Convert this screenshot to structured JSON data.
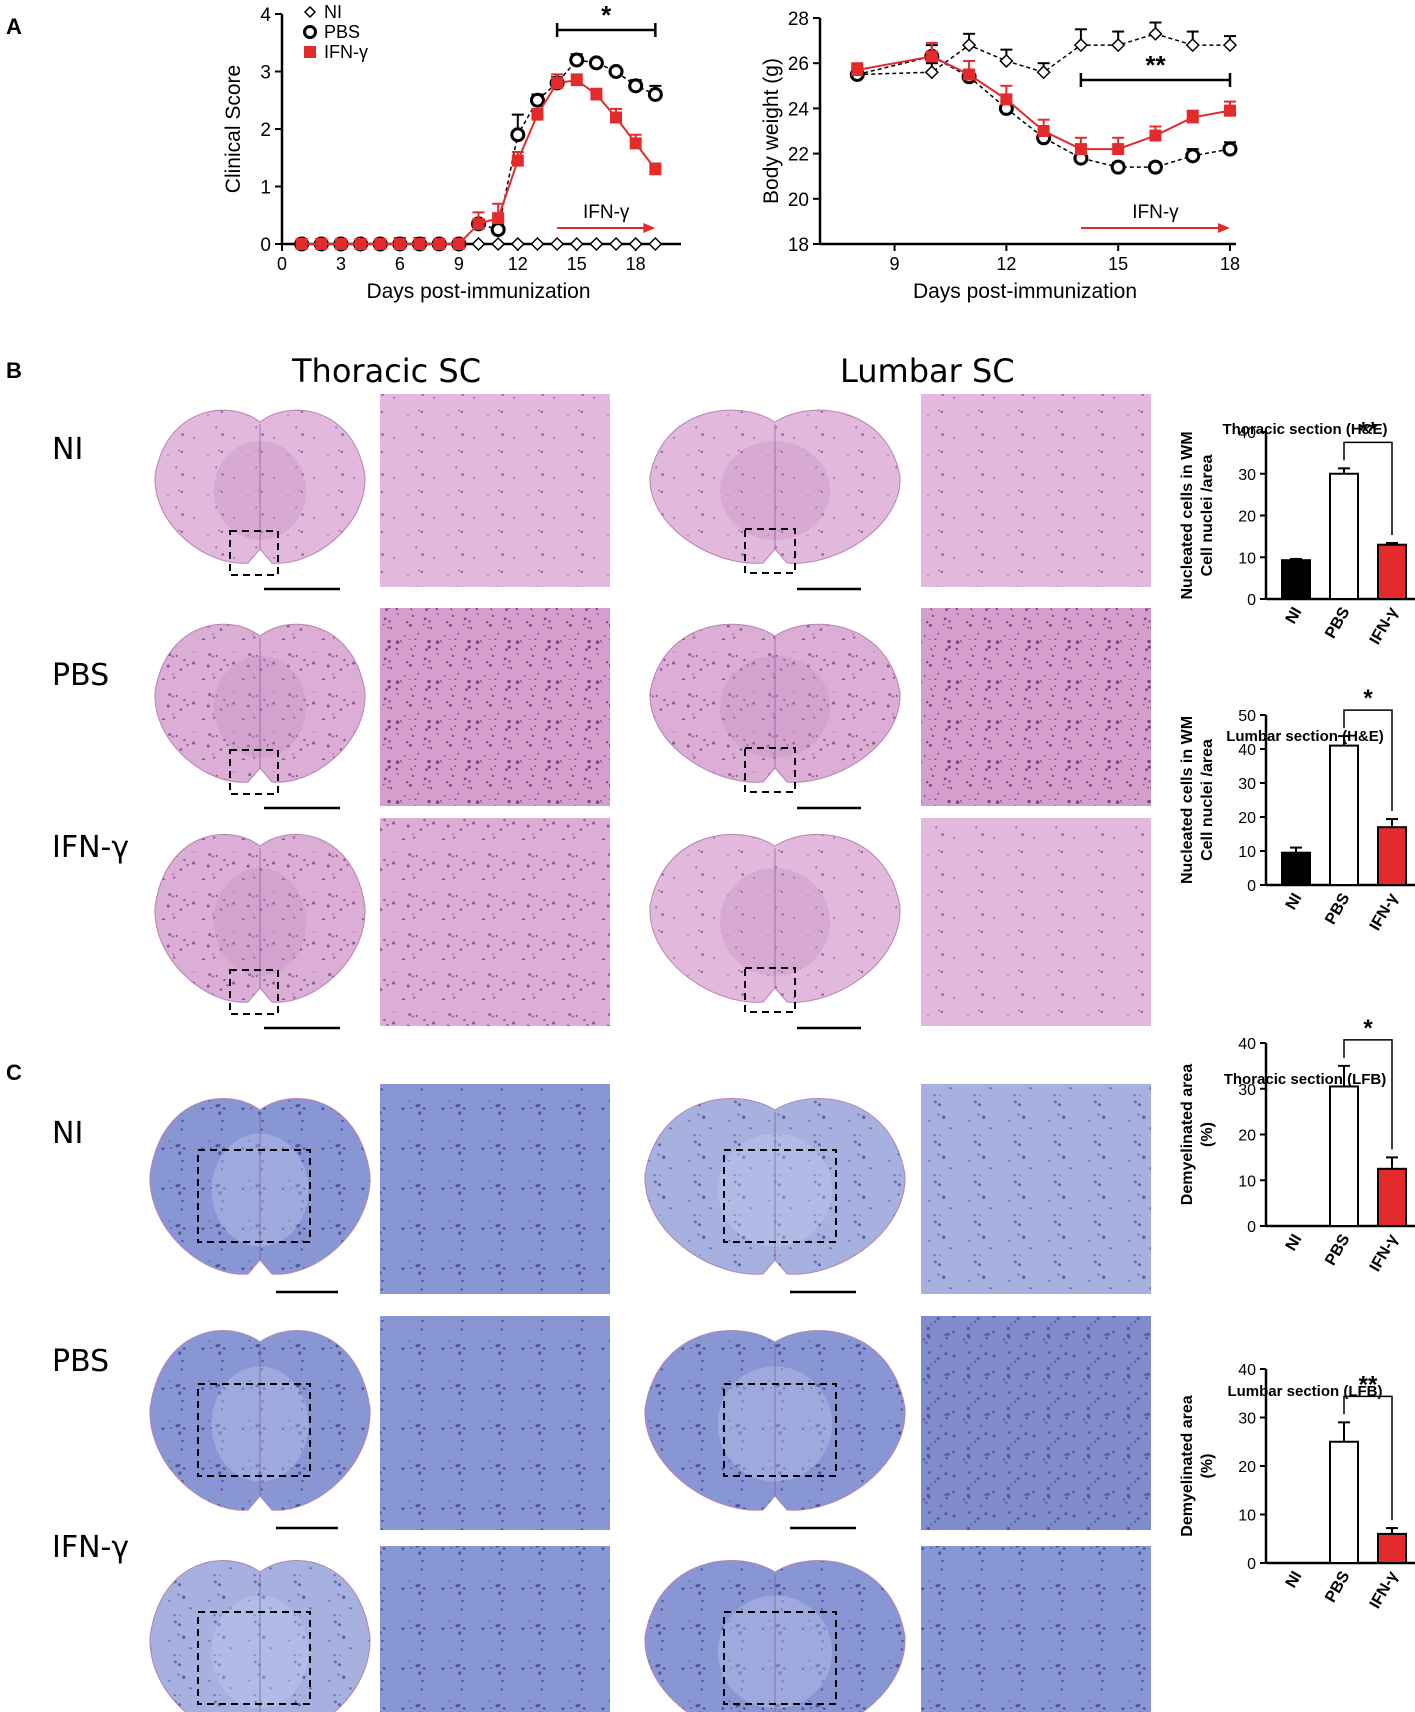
{
  "panel_letters": {
    "a": "A",
    "b": "B",
    "c": "C"
  },
  "columns": {
    "thoracic": "Thoracic SC",
    "lumbar": "Lumbar SC"
  },
  "rows": {
    "ni": "NI",
    "pbs": "PBS",
    "ifn": "IFN-γ"
  },
  "colors": {
    "red": "#e32b2b",
    "black": "#000000",
    "he_pink": "#d9a6d2",
    "lfb_blue": "#8592d2"
  },
  "chart_data": [
    {
      "type": "line",
      "xlabel": "Days post-immunization",
      "ylabel": "Clinical Score",
      "xlim": [
        0,
        20
      ],
      "ylim": [
        0,
        4
      ],
      "xticks": [
        0,
        3,
        6,
        9,
        12,
        15,
        18
      ],
      "yticks": [
        0,
        1,
        2,
        3,
        4
      ],
      "legend": [
        "NI",
        "PBS",
        "IFN-γ"
      ],
      "legend_position": "top-left",
      "significance": "*",
      "sig_range": [
        14,
        19
      ],
      "treatment_label": "IFN-γ",
      "treatment_range": [
        14,
        19
      ],
      "series": [
        {
          "name": "NI",
          "marker": "diamond",
          "color": "#000000",
          "dashed": true,
          "x": [
            1,
            2,
            3,
            4,
            5,
            6,
            7,
            8,
            9,
            10,
            11,
            12,
            13,
            14,
            15,
            16,
            17,
            18,
            19
          ],
          "y": [
            0,
            0,
            0,
            0,
            0,
            0,
            0,
            0,
            0,
            0,
            0,
            0,
            0,
            0,
            0,
            0,
            0,
            0,
            0
          ],
          "err": [
            0,
            0,
            0,
            0,
            0,
            0,
            0,
            0,
            0,
            0,
            0,
            0,
            0,
            0,
            0,
            0,
            0,
            0,
            0
          ]
        },
        {
          "name": "PBS",
          "marker": "circle",
          "color": "#000000",
          "dashed": true,
          "x": [
            1,
            2,
            3,
            4,
            5,
            6,
            7,
            8,
            9,
            10,
            11,
            12,
            13,
            14,
            15,
            16,
            17,
            18,
            19
          ],
          "y": [
            0,
            0,
            0,
            0,
            0,
            0,
            0,
            0,
            0,
            0.35,
            0.25,
            1.9,
            2.5,
            2.8,
            3.2,
            3.15,
            3.0,
            2.75,
            2.6
          ],
          "err": [
            0,
            0,
            0,
            0,
            0,
            0.1,
            0.1,
            0,
            0,
            0.05,
            0.1,
            0.35,
            0.1,
            0.1,
            0.1,
            0.05,
            0.05,
            0.1,
            0.15
          ]
        },
        {
          "name": "IFN-γ",
          "marker": "square",
          "color": "#e32b2b",
          "dashed": false,
          "x": [
            1,
            2,
            3,
            4,
            5,
            6,
            7,
            8,
            9,
            10,
            11,
            12,
            13,
            14,
            15,
            16,
            17,
            18,
            19
          ],
          "y": [
            0,
            0,
            0,
            0,
            0,
            0,
            0,
            0,
            0,
            0.35,
            0.45,
            1.45,
            2.25,
            2.8,
            2.85,
            2.6,
            2.2,
            1.75,
            1.3
          ],
          "err": [
            0,
            0,
            0,
            0,
            0,
            0,
            0,
            0,
            0,
            0.2,
            0.25,
            0.15,
            0.1,
            0.15,
            0.1,
            0.1,
            0.15,
            0.15,
            0.1
          ]
        }
      ]
    },
    {
      "type": "line",
      "xlabel": "Days post-immunization",
      "ylabel": "Body weight (g)",
      "xlim": [
        7,
        18
      ],
      "ylim": [
        18,
        28
      ],
      "xticks": [
        9,
        12,
        15,
        18
      ],
      "yticks": [
        18,
        20,
        22,
        24,
        26,
        28
      ],
      "significance": "**",
      "sig_range": [
        14,
        18
      ],
      "treatment_label": "IFN-γ",
      "treatment_range": [
        14,
        18
      ],
      "series": [
        {
          "name": "NI",
          "marker": "diamond",
          "color": "#000000",
          "dashed": true,
          "x": [
            8,
            10,
            11,
            12,
            13,
            14,
            15,
            16,
            17,
            18
          ],
          "y": [
            25.5,
            25.6,
            26.8,
            26.1,
            25.6,
            26.8,
            26.8,
            27.3,
            26.8,
            26.8
          ],
          "err": [
            0.3,
            0.4,
            0.5,
            0.5,
            0.4,
            0.7,
            0.6,
            0.5,
            0.6,
            0.4
          ]
        },
        {
          "name": "PBS",
          "marker": "circle",
          "color": "#000000",
          "dashed": true,
          "x": [
            8,
            10,
            11,
            12,
            13,
            14,
            15,
            16,
            17,
            18
          ],
          "y": [
            25.5,
            26.3,
            25.4,
            24.0,
            22.7,
            21.8,
            21.4,
            21.4,
            21.9,
            22.2
          ],
          "err": [
            0.2,
            0.5,
            0.3,
            0.3,
            0.2,
            0.2,
            0.2,
            0.2,
            0.3,
            0.3
          ]
        },
        {
          "name": "IFN-γ",
          "marker": "square",
          "color": "#e32b2b",
          "dashed": false,
          "x": [
            8,
            10,
            11,
            12,
            13,
            14,
            15,
            16,
            17,
            18
          ],
          "y": [
            25.7,
            26.3,
            25.5,
            24.4,
            23.0,
            22.2,
            22.2,
            22.8,
            23.6,
            23.9
          ],
          "err": [
            0.3,
            0.6,
            0.6,
            0.6,
            0.5,
            0.5,
            0.5,
            0.4,
            0.3,
            0.4
          ]
        }
      ]
    },
    {
      "type": "bar",
      "title": "Thoracic section (H&E)",
      "ylabel_lines": [
        "Nucleated cells in WM",
        "Cell nuclei /area"
      ],
      "categories": [
        "NI",
        "PBS",
        "IFN-γ"
      ],
      "values": [
        9.3,
        30,
        13
      ],
      "err": [
        0.3,
        1.3,
        0.4
      ],
      "colors": [
        "#000000",
        "#ffffff",
        "#e32b2b"
      ],
      "ylim": [
        0,
        40
      ],
      "yticks": [
        0,
        10,
        20,
        30,
        40
      ],
      "significance": "**",
      "sig_pair": [
        1,
        2
      ]
    },
    {
      "type": "bar",
      "title": "Lumbar section (H&E)",
      "ylabel_lines": [
        "Nucleated cells in WM",
        "Cell nuclei /area"
      ],
      "categories": [
        "NI",
        "PBS",
        "IFN-γ"
      ],
      "values": [
        9.5,
        41,
        17
      ],
      "err": [
        1.5,
        2.8,
        2.4
      ],
      "colors": [
        "#000000",
        "#ffffff",
        "#e32b2b"
      ],
      "ylim": [
        0,
        50
      ],
      "yticks": [
        0,
        10,
        20,
        30,
        40,
        50
      ],
      "significance": "*",
      "sig_pair": [
        1,
        2
      ]
    },
    {
      "type": "bar",
      "title": "Thoracic section (LFB)",
      "ylabel_lines": [
        "Demyelinated area",
        "(%)"
      ],
      "categories": [
        "NI",
        "PBS",
        "IFN-γ"
      ],
      "values": [
        0,
        30.5,
        12.5
      ],
      "err": [
        0,
        4.5,
        2.5
      ],
      "colors": [
        "#000000",
        "#ffffff",
        "#e32b2b"
      ],
      "ylim": [
        0,
        40
      ],
      "yticks": [
        0,
        10,
        20,
        30,
        40
      ],
      "significance": "*",
      "sig_pair": [
        1,
        2
      ]
    },
    {
      "type": "bar",
      "title": "Lumbar section (LFB)",
      "ylabel_lines": [
        "Demyelinated area",
        "(%)"
      ],
      "categories": [
        "NI",
        "PBS",
        "IFN-γ"
      ],
      "values": [
        0,
        25,
        6
      ],
      "err": [
        0,
        4,
        1.2
      ],
      "colors": [
        "#000000",
        "#ffffff",
        "#e32b2b"
      ],
      "ylim": [
        0,
        40
      ],
      "yticks": [
        0,
        10,
        20,
        30,
        40
      ],
      "significance": "**",
      "sig_pair": [
        1,
        2
      ]
    }
  ]
}
